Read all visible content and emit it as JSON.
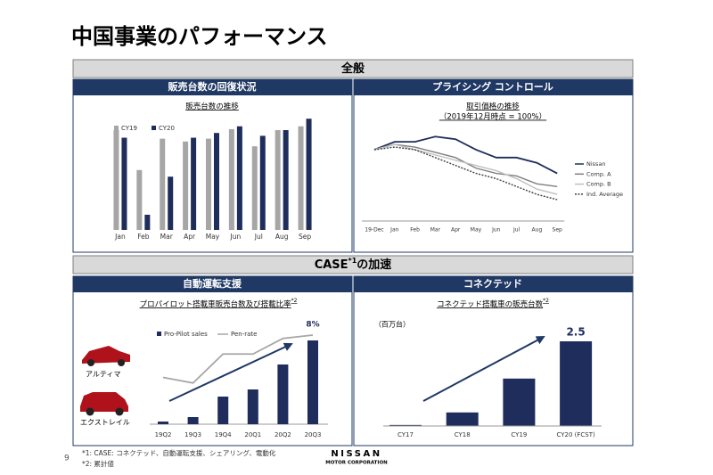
{
  "title": "中国事業のパフォーマンス",
  "sections": [
    {
      "title_parts": [
        "全般"
      ]
    },
    {
      "title_parts": [
        "CASE",
        "*1",
        "の加速"
      ]
    }
  ],
  "panels": [
    "販売台数の回復状況",
    "プライシング コントロール",
    "自動運転支援",
    "コネクテッド"
  ],
  "cars": [
    "アルティマ",
    "エクストレイル"
  ],
  "footer": {
    "page": "9",
    "notes": [
      "*1: CASE: コネクテッド、自動運転支援、シェアリング、電動化",
      "*2: 累計値"
    ],
    "logo": "NISSAN",
    "logo_sub": "MOTOR CORPORATION"
  },
  "chart_data": [
    {
      "type": "bar",
      "title": "販売台数の推移",
      "categories": [
        "Jan",
        "Feb",
        "Mar",
        "Apr",
        "May",
        "Jun",
        "Jul",
        "Aug",
        "Sep"
      ],
      "series": [
        {
          "name": "CY19",
          "color": "#a6a6a6",
          "values": [
            105,
            63,
            96,
            93,
            96,
            106,
            88,
            105,
            109
          ]
        },
        {
          "name": "CY20",
          "color": "#1f2d5c",
          "values": [
            97,
            16,
            56,
            97,
            102,
            109,
            99,
            105,
            117
          ]
        }
      ],
      "ylim": [
        0,
        120
      ]
    },
    {
      "type": "line",
      "title": "取引価格の推移",
      "subtitle": "（2019年12月時点 = 100%）",
      "categories": [
        "19-Dec",
        "Jan",
        "Feb",
        "Mar",
        "Apr",
        "May",
        "Jun",
        "Jul",
        "Aug",
        "Sep"
      ],
      "series": [
        {
          "name": "Nissan",
          "color": "#1f2d5c",
          "values": [
            100,
            103,
            103,
            105,
            104,
            100,
            97,
            97,
            95,
            91
          ]
        },
        {
          "name": "Comp. A",
          "color": "#7f7f7f",
          "values": [
            100,
            102,
            101,
            99,
            97,
            93,
            91,
            90,
            87,
            86
          ]
        },
        {
          "name": "Comp. B",
          "color": "#bfbfbf",
          "values": [
            100,
            102,
            100,
            98,
            96,
            94,
            92,
            89,
            85,
            83
          ]
        },
        {
          "name": "Ind. Average",
          "color": "#404040",
          "linestyle": "dotted",
          "values": [
            100,
            101,
            100,
            97,
            94,
            91,
            89,
            86,
            83,
            81
          ]
        }
      ],
      "ylim": [
        75,
        110
      ]
    },
    {
      "type": "combo",
      "title": "プロパイロット搭載車販売台数及び搭載比率",
      "title_note": "*2",
      "categories": [
        "19Q2",
        "19Q3",
        "19Q4",
        "20Q1",
        "20Q2",
        "20Q3"
      ],
      "series": [
        {
          "name": "Pro-Pilot sales",
          "color": "#1f2d5c",
          "values": [
            3,
            8,
            31,
            39,
            67,
            94
          ]
        },
        {
          "name": "Pen-rate",
          "color": "#a6a6a6",
          "axis": "y2",
          "values": [
            4.2,
            3.7,
            6.3,
            6.3,
            7.7,
            8
          ],
          "value_labels": [
            null,
            null,
            null,
            null,
            null,
            "8%"
          ]
        }
      ],
      "ylim": [
        0,
        100
      ],
      "y2lim": [
        0,
        8
      ]
    },
    {
      "type": "bar",
      "title": "コネクテッド搭載車の販売台数",
      "title_note": "*2",
      "unit": "（百万台）",
      "categories": [
        "CY17",
        "CY18",
        "CY19",
        "CY20 (FCST)"
      ],
      "color": "#1f2d5c",
      "values": [
        0.03,
        0.4,
        1.4,
        2.5
      ],
      "value_labels": [
        null,
        null,
        null,
        "2.5"
      ],
      "ylim": [
        0,
        2.5
      ]
    }
  ]
}
